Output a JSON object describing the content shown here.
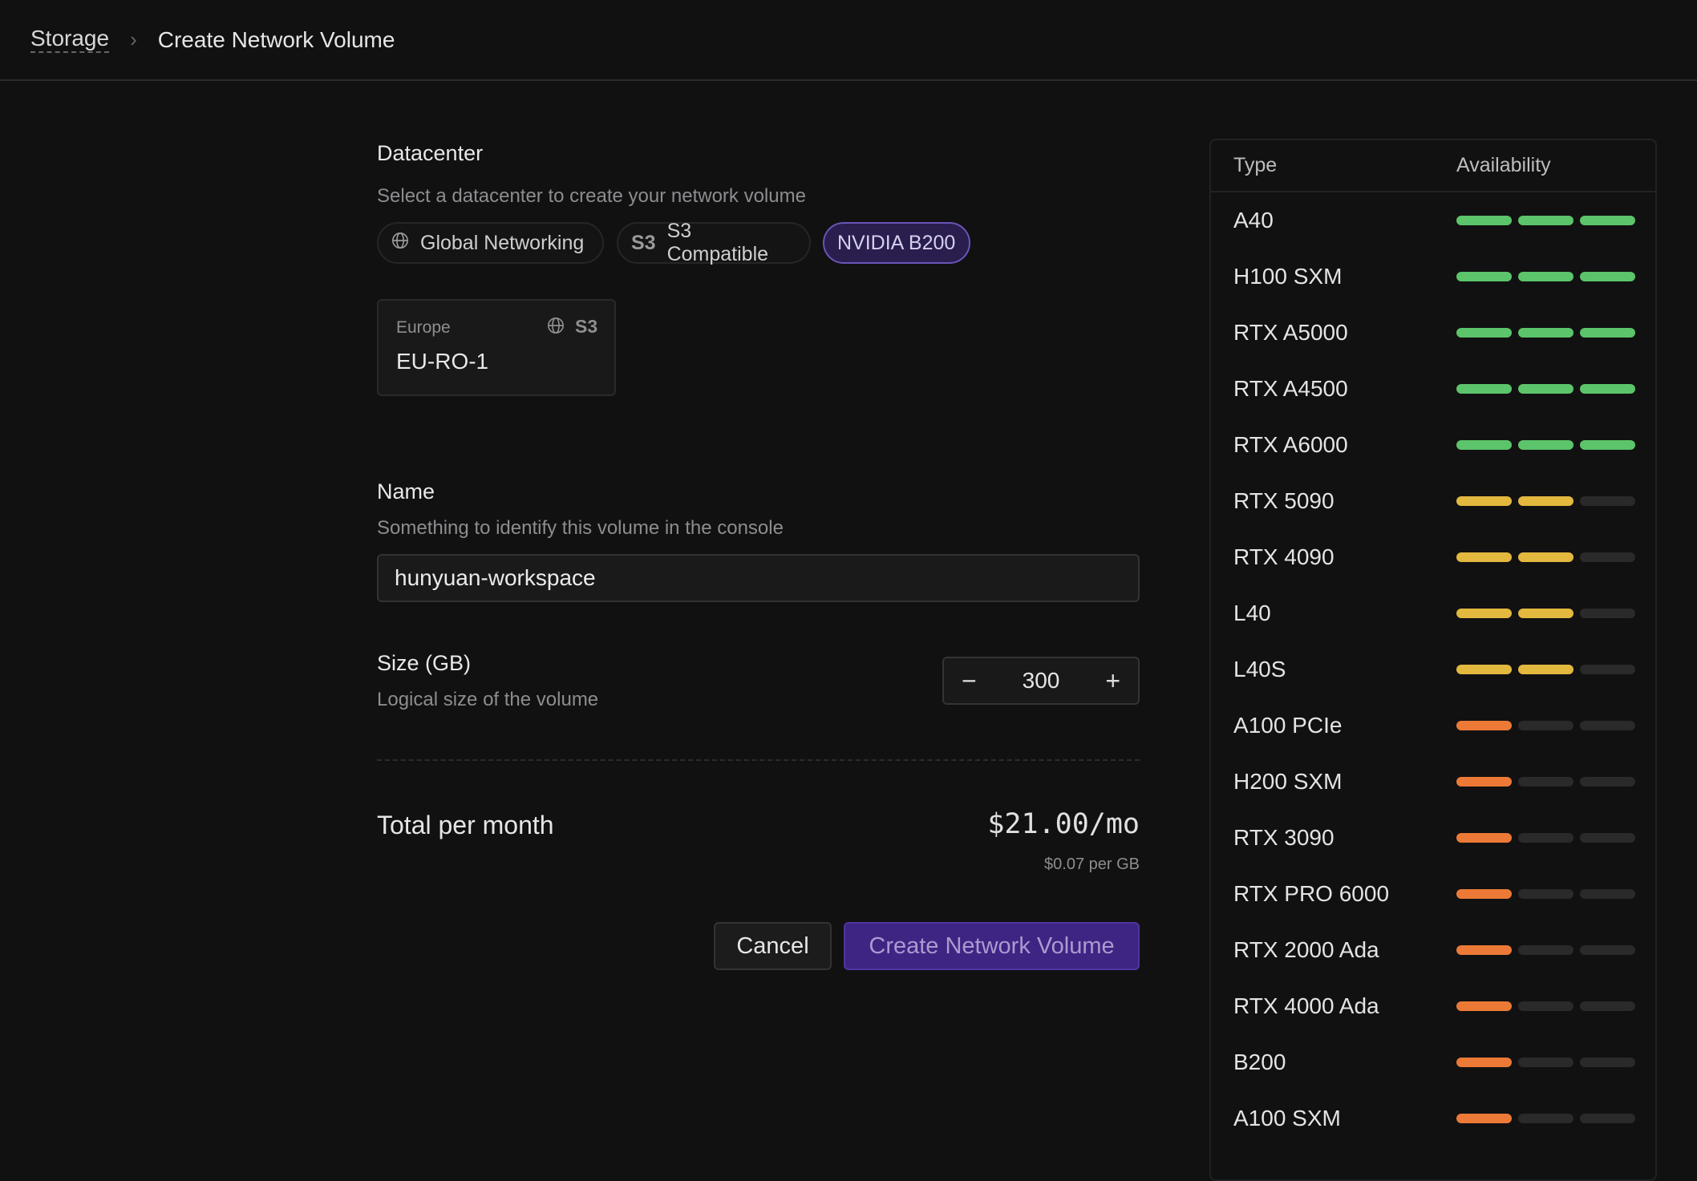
{
  "breadcrumb": {
    "parent": "Storage",
    "current": "Create Network Volume"
  },
  "datacenter": {
    "label": "Datacenter",
    "description": "Select a datacenter to create your network volume",
    "filters": [
      {
        "label": "Global Networking",
        "icon": "globe-icon",
        "active": false
      },
      {
        "label": "S3 Compatible",
        "icon": "S3",
        "active": false
      },
      {
        "label": "NVIDIA B200",
        "active": true
      }
    ],
    "options": [
      {
        "region": "Europe",
        "name": "EU-RO-1",
        "badges": [
          "globe-icon",
          "S3"
        ]
      }
    ]
  },
  "name": {
    "label": "Name",
    "description": "Something to identify this volume in the console",
    "value": "hunyuan-workspace"
  },
  "size": {
    "label": "Size (GB)",
    "description": "Logical size of the volume",
    "value": "300",
    "decrement": "−",
    "increment": "+"
  },
  "total": {
    "label": "Total per month",
    "price": "$21.00/mo",
    "rate": "$0.07 per GB"
  },
  "actions": {
    "cancel": "Cancel",
    "create": "Create Network Volume"
  },
  "availability": {
    "headers": {
      "type": "Type",
      "availability": "Availability"
    },
    "colors": {
      "high": "#5cc46a",
      "medium": "#e3b83e",
      "low": "#ec7a36",
      "empty": "#2a2a2b"
    },
    "max_level": 3,
    "rows": [
      {
        "type": "A40",
        "level": 3
      },
      {
        "type": "H100 SXM",
        "level": 3
      },
      {
        "type": "RTX A5000",
        "level": 3
      },
      {
        "type": "RTX A4500",
        "level": 3
      },
      {
        "type": "RTX A6000",
        "level": 3
      },
      {
        "type": "RTX 5090",
        "level": 2
      },
      {
        "type": "RTX 4090",
        "level": 2
      },
      {
        "type": "L40",
        "level": 2
      },
      {
        "type": "L40S",
        "level": 2
      },
      {
        "type": "A100 PCIe",
        "level": 1
      },
      {
        "type": "H200 SXM",
        "level": 1
      },
      {
        "type": "RTX 3090",
        "level": 1
      },
      {
        "type": "RTX PRO 6000",
        "level": 1
      },
      {
        "type": "RTX 2000 Ada",
        "level": 1
      },
      {
        "type": "RTX 4000 Ada",
        "level": 1
      },
      {
        "type": "B200",
        "level": 1
      },
      {
        "type": "A100 SXM",
        "level": 1
      }
    ]
  }
}
